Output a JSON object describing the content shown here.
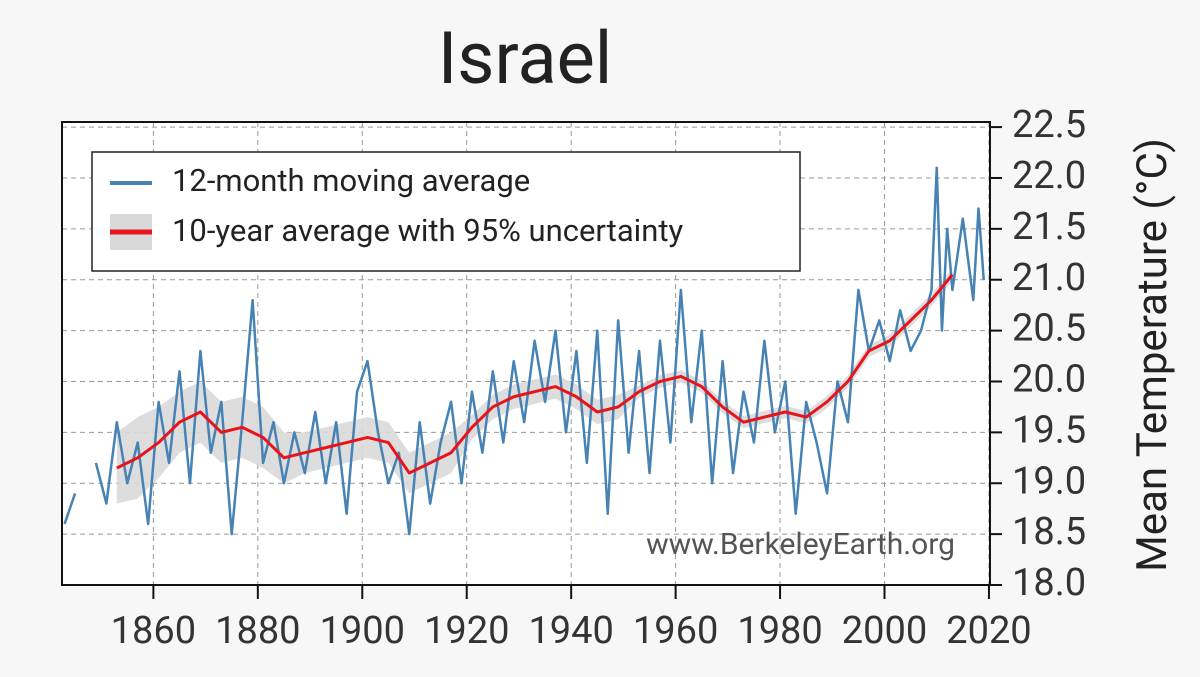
{
  "chart_data": {
    "type": "line",
    "title": "Israel",
    "y_label": "Mean Temperature (°C)",
    "watermark": "www.BerkeleyEarth.org",
    "xlim": [
      1842.5,
      2020.2
    ],
    "xticks": [
      1860,
      1880,
      1900,
      1920,
      1940,
      1960,
      1980,
      2000,
      2020
    ],
    "ylim": [
      18.0,
      22.55
    ],
    "yticks": [
      18.0,
      18.5,
      19.0,
      19.5,
      20.0,
      20.5,
      21.0,
      21.5,
      22.0,
      22.5
    ],
    "ytick_labels": [
      "18.0",
      "18.5",
      "19.0",
      "19.5",
      "20.0",
      "20.5",
      "21.0",
      "21.5",
      "22.0",
      "22.5"
    ],
    "y_axis_side": "right",
    "grid": true,
    "legend": "upper left",
    "series": [
      {
        "name": "12-month moving average",
        "color": "#4682b4",
        "x": [
          1843,
          1845,
          1847,
          1849,
          1851,
          1853,
          1855,
          1857,
          1859,
          1861,
          1863,
          1865,
          1867,
          1869,
          1871,
          1873,
          1875,
          1877,
          1879,
          1881,
          1883,
          1885,
          1887,
          1889,
          1891,
          1893,
          1895,
          1897,
          1899,
          1901,
          1903,
          1905,
          1907,
          1909,
          1911,
          1913,
          1915,
          1917,
          1919,
          1921,
          1923,
          1925,
          1927,
          1929,
          1931,
          1933,
          1935,
          1937,
          1939,
          1941,
          1943,
          1945,
          1947,
          1949,
          1951,
          1953,
          1955,
          1957,
          1959,
          1961,
          1963,
          1965,
          1967,
          1969,
          1971,
          1973,
          1975,
          1977,
          1979,
          1981,
          1983,
          1985,
          1987,
          1989,
          1991,
          1993,
          1995,
          1997,
          1999,
          2001,
          2003,
          2005,
          2007,
          2009,
          2010,
          2011,
          2012,
          2013,
          2015,
          2017,
          2018,
          2019
        ],
        "values": [
          18.6,
          18.9,
          null,
          19.2,
          18.8,
          19.6,
          19.0,
          19.4,
          18.6,
          19.8,
          19.2,
          20.1,
          19.0,
          20.3,
          19.3,
          19.8,
          18.5,
          19.6,
          20.8,
          19.2,
          19.6,
          19.0,
          19.5,
          19.1,
          19.7,
          19.0,
          19.6,
          18.7,
          19.9,
          20.2,
          19.5,
          19.0,
          19.3,
          18.5,
          19.6,
          18.8,
          19.4,
          19.8,
          19.0,
          19.9,
          19.3,
          20.1,
          19.4,
          20.2,
          19.6,
          20.4,
          19.8,
          20.5,
          19.5,
          20.3,
          19.2,
          20.5,
          18.7,
          20.6,
          19.3,
          20.3,
          19.1,
          20.4,
          19.4,
          20.9,
          19.6,
          20.5,
          19.0,
          20.2,
          19.1,
          19.9,
          19.4,
          20.4,
          19.5,
          20.0,
          18.7,
          19.8,
          19.4,
          18.9,
          20.0,
          19.6,
          20.9,
          20.3,
          20.6,
          20.2,
          20.7,
          20.3,
          20.5,
          20.9,
          22.1,
          20.5,
          21.5,
          20.9,
          21.6,
          20.8,
          21.7,
          21.0
        ]
      },
      {
        "name": "10-year average with 95% uncertainty",
        "color": "#e8141c",
        "band_color": "#d9d9d9",
        "x": [
          1853,
          1857,
          1861,
          1865,
          1869,
          1873,
          1877,
          1881,
          1885,
          1889,
          1893,
          1897,
          1901,
          1905,
          1909,
          1913,
          1917,
          1921,
          1925,
          1929,
          1933,
          1937,
          1941,
          1945,
          1949,
          1953,
          1957,
          1961,
          1965,
          1969,
          1973,
          1977,
          1981,
          1985,
          1989,
          1993,
          1997,
          2001,
          2005,
          2009,
          2013
        ],
        "values": [
          19.15,
          19.25,
          19.4,
          19.6,
          19.7,
          19.5,
          19.55,
          19.45,
          19.25,
          19.3,
          19.35,
          19.4,
          19.45,
          19.4,
          19.1,
          19.2,
          19.3,
          19.55,
          19.75,
          19.85,
          19.9,
          19.95,
          19.85,
          19.7,
          19.75,
          19.9,
          20.0,
          20.05,
          19.95,
          19.75,
          19.6,
          19.65,
          19.7,
          19.65,
          19.8,
          20.0,
          20.3,
          20.4,
          20.6,
          20.8,
          21.05
        ],
        "lower": [
          18.8,
          18.85,
          19.05,
          19.3,
          19.4,
          19.2,
          19.25,
          19.15,
          19.0,
          19.1,
          19.15,
          19.2,
          19.25,
          19.2,
          18.9,
          19.0,
          19.1,
          19.43,
          19.63,
          19.73,
          19.78,
          19.83,
          19.73,
          19.58,
          19.63,
          19.84,
          19.94,
          19.99,
          19.89,
          19.69,
          19.54,
          19.59,
          19.64,
          19.59,
          19.74,
          19.94,
          20.24,
          20.34,
          20.54,
          20.74,
          20.99
        ],
        "upper": [
          19.5,
          19.65,
          19.75,
          19.9,
          20.0,
          19.8,
          19.85,
          19.75,
          19.5,
          19.5,
          19.55,
          19.6,
          19.65,
          19.6,
          19.3,
          19.4,
          19.5,
          19.67,
          19.87,
          19.97,
          20.02,
          20.07,
          19.97,
          19.82,
          19.87,
          19.96,
          20.06,
          20.11,
          20.01,
          19.81,
          19.66,
          19.71,
          19.76,
          19.71,
          19.86,
          20.06,
          20.36,
          20.46,
          20.66,
          20.86,
          21.11
        ]
      }
    ]
  }
}
